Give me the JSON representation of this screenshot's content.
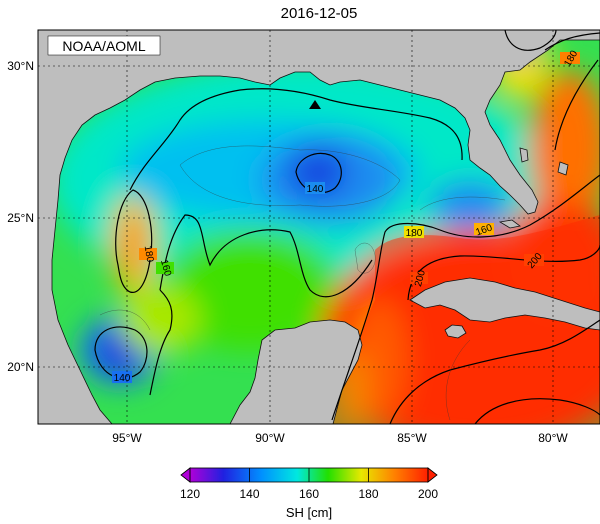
{
  "title": "2016-12-05",
  "credit": "NOAA/AOML",
  "colorbar": {
    "label": "SH [cm]",
    "ticks": [
      "120",
      "140",
      "160",
      "180",
      "200"
    ],
    "range": [
      120,
      200
    ],
    "colors": [
      "#b000d8",
      "#2020e0",
      "#00b8ff",
      "#00e8b0",
      "#22e000",
      "#e8e800",
      "#ff8000",
      "#ff2000"
    ]
  },
  "map": {
    "lat_labels": [
      "30°N",
      "25°N",
      "20°N"
    ],
    "lon_labels": [
      "95°W",
      "90°W",
      "85°W",
      "80°W"
    ],
    "lat_range": [
      18,
      31
    ],
    "lon_range": [
      -98,
      -78
    ],
    "land_color": "#bebebe"
  },
  "contour_labels": [
    "140",
    "140",
    "160",
    "160",
    "180",
    "180",
    "180",
    "200",
    "200"
  ],
  "markers": [
    {
      "type": "triangle",
      "lon": -88.3,
      "lat": 28.8
    }
  ]
}
